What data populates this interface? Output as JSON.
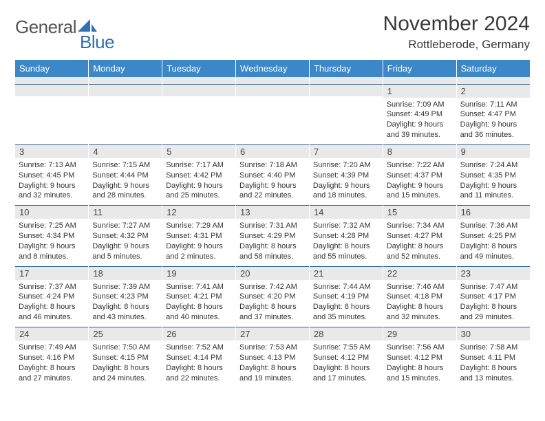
{
  "logo": {
    "part1": "General",
    "part2": "Blue"
  },
  "title": "November 2024",
  "location": "Rottleberode, Germany",
  "colors": {
    "header_bg": "#3b87c8",
    "header_text": "#ffffff",
    "daynum_bg": "#e9e9e9",
    "row_border": "#2a5f8f",
    "logo_blue": "#2f6fb3",
    "logo_grey": "#555555",
    "title_color": "#3a3a3a",
    "body_text": "#333333"
  },
  "weekdays": [
    "Sunday",
    "Monday",
    "Tuesday",
    "Wednesday",
    "Thursday",
    "Friday",
    "Saturday"
  ],
  "weeks": [
    [
      null,
      null,
      null,
      null,
      null,
      {
        "n": "1",
        "sr": "7:09 AM",
        "ss": "4:49 PM",
        "dl": "9 hours and 39 minutes."
      },
      {
        "n": "2",
        "sr": "7:11 AM",
        "ss": "4:47 PM",
        "dl": "9 hours and 36 minutes."
      }
    ],
    [
      {
        "n": "3",
        "sr": "7:13 AM",
        "ss": "4:45 PM",
        "dl": "9 hours and 32 minutes."
      },
      {
        "n": "4",
        "sr": "7:15 AM",
        "ss": "4:44 PM",
        "dl": "9 hours and 28 minutes."
      },
      {
        "n": "5",
        "sr": "7:17 AM",
        "ss": "4:42 PM",
        "dl": "9 hours and 25 minutes."
      },
      {
        "n": "6",
        "sr": "7:18 AM",
        "ss": "4:40 PM",
        "dl": "9 hours and 22 minutes."
      },
      {
        "n": "7",
        "sr": "7:20 AM",
        "ss": "4:39 PM",
        "dl": "9 hours and 18 minutes."
      },
      {
        "n": "8",
        "sr": "7:22 AM",
        "ss": "4:37 PM",
        "dl": "9 hours and 15 minutes."
      },
      {
        "n": "9",
        "sr": "7:24 AM",
        "ss": "4:35 PM",
        "dl": "9 hours and 11 minutes."
      }
    ],
    [
      {
        "n": "10",
        "sr": "7:25 AM",
        "ss": "4:34 PM",
        "dl": "9 hours and 8 minutes."
      },
      {
        "n": "11",
        "sr": "7:27 AM",
        "ss": "4:32 PM",
        "dl": "9 hours and 5 minutes."
      },
      {
        "n": "12",
        "sr": "7:29 AM",
        "ss": "4:31 PM",
        "dl": "9 hours and 2 minutes."
      },
      {
        "n": "13",
        "sr": "7:31 AM",
        "ss": "4:29 PM",
        "dl": "8 hours and 58 minutes."
      },
      {
        "n": "14",
        "sr": "7:32 AM",
        "ss": "4:28 PM",
        "dl": "8 hours and 55 minutes."
      },
      {
        "n": "15",
        "sr": "7:34 AM",
        "ss": "4:27 PM",
        "dl": "8 hours and 52 minutes."
      },
      {
        "n": "16",
        "sr": "7:36 AM",
        "ss": "4:25 PM",
        "dl": "8 hours and 49 minutes."
      }
    ],
    [
      {
        "n": "17",
        "sr": "7:37 AM",
        "ss": "4:24 PM",
        "dl": "8 hours and 46 minutes."
      },
      {
        "n": "18",
        "sr": "7:39 AM",
        "ss": "4:23 PM",
        "dl": "8 hours and 43 minutes."
      },
      {
        "n": "19",
        "sr": "7:41 AM",
        "ss": "4:21 PM",
        "dl": "8 hours and 40 minutes."
      },
      {
        "n": "20",
        "sr": "7:42 AM",
        "ss": "4:20 PM",
        "dl": "8 hours and 37 minutes."
      },
      {
        "n": "21",
        "sr": "7:44 AM",
        "ss": "4:19 PM",
        "dl": "8 hours and 35 minutes."
      },
      {
        "n": "22",
        "sr": "7:46 AM",
        "ss": "4:18 PM",
        "dl": "8 hours and 32 minutes."
      },
      {
        "n": "23",
        "sr": "7:47 AM",
        "ss": "4:17 PM",
        "dl": "8 hours and 29 minutes."
      }
    ],
    [
      {
        "n": "24",
        "sr": "7:49 AM",
        "ss": "4:16 PM",
        "dl": "8 hours and 27 minutes."
      },
      {
        "n": "25",
        "sr": "7:50 AM",
        "ss": "4:15 PM",
        "dl": "8 hours and 24 minutes."
      },
      {
        "n": "26",
        "sr": "7:52 AM",
        "ss": "4:14 PM",
        "dl": "8 hours and 22 minutes."
      },
      {
        "n": "27",
        "sr": "7:53 AM",
        "ss": "4:13 PM",
        "dl": "8 hours and 19 minutes."
      },
      {
        "n": "28",
        "sr": "7:55 AM",
        "ss": "4:12 PM",
        "dl": "8 hours and 17 minutes."
      },
      {
        "n": "29",
        "sr": "7:56 AM",
        "ss": "4:12 PM",
        "dl": "8 hours and 15 minutes."
      },
      {
        "n": "30",
        "sr": "7:58 AM",
        "ss": "4:11 PM",
        "dl": "8 hours and 13 minutes."
      }
    ]
  ],
  "labels": {
    "sunrise": "Sunrise:",
    "sunset": "Sunset:",
    "daylight": "Daylight:"
  }
}
